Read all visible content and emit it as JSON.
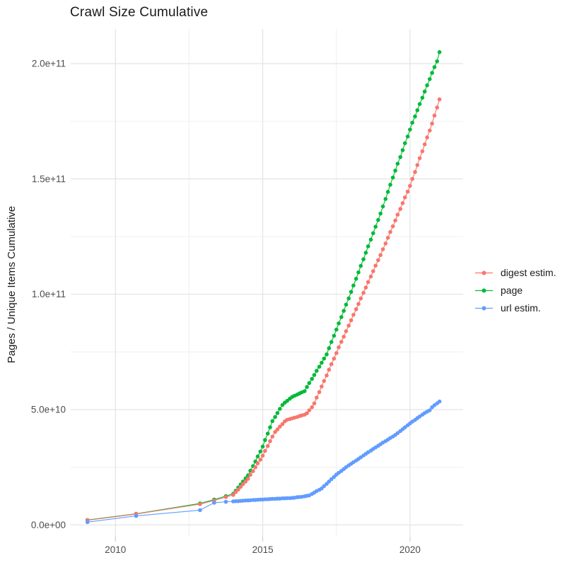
{
  "chart_data": {
    "type": "line",
    "title": "Crawl Size Cumulative",
    "xlabel": "",
    "ylabel": "Pages / Unique Items Cumulative",
    "value_unit": "1e9 pages",
    "legend_position": "right",
    "grid": true,
    "style": {
      "grid_major_color": "#E3E3E3",
      "grid_minor_color": "#EFEFEF",
      "tick_color": "#CFCFCF",
      "tick_label_color": "#4D4D4D",
      "text_color": "#1A1A1A",
      "background": "#FFFFFF"
    },
    "x_axis": {
      "range": [
        2008.45,
        2021.75
      ],
      "ticks": [
        2010,
        2015,
        2020
      ],
      "tick_labels": [
        "2010",
        "2015",
        "2020"
      ],
      "minor_ticks": [
        2012.5,
        2017.5
      ]
    },
    "y_axis": {
      "range": [
        -5,
        215
      ],
      "ticks": [
        0,
        50,
        100,
        150,
        200
      ],
      "tick_labels": [
        "0.0e+00",
        "5.0e+10",
        "1.0e+11",
        "1.5e+11",
        "2.0e+11"
      ],
      "minor_ticks": [
        25,
        75,
        125,
        175
      ]
    },
    "draw_order": [
      1,
      0,
      2
    ],
    "series": [
      {
        "name": "digest estim.",
        "color": "#F8766D",
        "points": [
          [
            2009.05,
            2.0
          ],
          [
            2010.7,
            4.7
          ],
          [
            2012.87,
            9.0
          ],
          [
            2013.35,
            10.6
          ],
          [
            2013.75,
            12.1
          ],
          [
            2014.0,
            13.0
          ],
          [
            2014.08,
            14.2
          ],
          [
            2014.17,
            15.3
          ],
          [
            2014.25,
            16.5
          ],
          [
            2014.33,
            17.7
          ],
          [
            2014.42,
            18.8
          ],
          [
            2014.5,
            20.0
          ],
          [
            2014.58,
            21.7
          ],
          [
            2014.67,
            23.3
          ],
          [
            2014.75,
            25.0
          ],
          [
            2014.83,
            26.7
          ],
          [
            2014.92,
            28.3
          ],
          [
            2015.0,
            30.0
          ],
          [
            2015.08,
            32.1
          ],
          [
            2015.17,
            34.2
          ],
          [
            2015.25,
            36.3
          ],
          [
            2015.33,
            38.3
          ],
          [
            2015.42,
            40.3
          ],
          [
            2015.5,
            41.4
          ],
          [
            2015.58,
            42.6
          ],
          [
            2015.67,
            43.7
          ],
          [
            2015.75,
            44.9
          ],
          [
            2015.83,
            45.6
          ],
          [
            2015.92,
            45.9
          ],
          [
            2016.0,
            46.2
          ],
          [
            2016.08,
            46.5
          ],
          [
            2016.17,
            46.8
          ],
          [
            2016.25,
            47.2
          ],
          [
            2016.33,
            47.5
          ],
          [
            2016.42,
            47.8
          ],
          [
            2016.5,
            48.4
          ],
          [
            2016.58,
            49.7
          ],
          [
            2016.67,
            51.0
          ],
          [
            2016.75,
            52.7
          ],
          [
            2016.83,
            55.2
          ],
          [
            2016.92,
            57.6
          ],
          [
            2017.0,
            60.0
          ],
          [
            2017.08,
            62.4
          ],
          [
            2017.17,
            64.8
          ],
          [
            2017.25,
            67.3
          ],
          [
            2017.33,
            69.7
          ],
          [
            2017.42,
            72.1
          ],
          [
            2017.5,
            74.5
          ],
          [
            2017.58,
            77.0
          ],
          [
            2017.67,
            79.4
          ],
          [
            2017.75,
            81.6
          ],
          [
            2017.83,
            84.0
          ],
          [
            2017.92,
            86.4
          ],
          [
            2018.0,
            88.7
          ],
          [
            2018.08,
            91.1
          ],
          [
            2018.17,
            93.5
          ],
          [
            2018.25,
            95.8
          ],
          [
            2018.33,
            98.2
          ],
          [
            2018.42,
            100.6
          ],
          [
            2018.5,
            102.9
          ],
          [
            2018.58,
            105.3
          ],
          [
            2018.67,
            107.7
          ],
          [
            2018.75,
            110.0
          ],
          [
            2018.83,
            112.4
          ],
          [
            2018.92,
            114.8
          ],
          [
            2019.0,
            117.0
          ],
          [
            2019.08,
            119.5
          ],
          [
            2019.17,
            122.0
          ],
          [
            2019.25,
            124.5
          ],
          [
            2019.33,
            127.0
          ],
          [
            2019.42,
            129.5
          ],
          [
            2019.5,
            132.0
          ],
          [
            2019.58,
            134.5
          ],
          [
            2019.67,
            137.0
          ],
          [
            2019.75,
            139.5
          ],
          [
            2019.83,
            142.0
          ],
          [
            2019.92,
            144.5
          ],
          [
            2020.0,
            147.0
          ],
          [
            2020.08,
            150.0
          ],
          [
            2020.17,
            153.0
          ],
          [
            2020.25,
            156.0
          ],
          [
            2020.33,
            159.0
          ],
          [
            2020.42,
            162.0
          ],
          [
            2020.5,
            165.0
          ],
          [
            2020.58,
            168.0
          ],
          [
            2020.67,
            171.0
          ],
          [
            2020.75,
            174.0
          ],
          [
            2020.83,
            177.5
          ],
          [
            2020.92,
            181.0
          ],
          [
            2021.0,
            184.5
          ]
        ]
      },
      {
        "name": "page",
        "color": "#00BA38",
        "points": [
          [
            2009.05,
            2.1
          ],
          [
            2010.7,
            4.8
          ],
          [
            2012.87,
            9.3
          ],
          [
            2013.35,
            11.0
          ],
          [
            2013.75,
            12.5
          ],
          [
            2014.0,
            13.5
          ],
          [
            2014.08,
            14.8
          ],
          [
            2014.17,
            16.2
          ],
          [
            2014.25,
            17.5
          ],
          [
            2014.33,
            18.8
          ],
          [
            2014.42,
            20.2
          ],
          [
            2014.5,
            21.5
          ],
          [
            2014.58,
            23.5
          ],
          [
            2014.67,
            25.5
          ],
          [
            2014.75,
            27.5
          ],
          [
            2014.83,
            29.7
          ],
          [
            2014.92,
            31.8
          ],
          [
            2015.0,
            34.0
          ],
          [
            2015.08,
            36.8
          ],
          [
            2015.17,
            39.6
          ],
          [
            2015.25,
            42.3
          ],
          [
            2015.33,
            45.0
          ],
          [
            2015.42,
            46.8
          ],
          [
            2015.5,
            48.5
          ],
          [
            2015.58,
            50.3
          ],
          [
            2015.67,
            52.0
          ],
          [
            2015.75,
            53.0
          ],
          [
            2015.83,
            53.8
          ],
          [
            2015.92,
            54.7
          ],
          [
            2016.0,
            55.5
          ],
          [
            2016.08,
            56.0
          ],
          [
            2016.17,
            56.5
          ],
          [
            2016.25,
            57.0
          ],
          [
            2016.33,
            57.5
          ],
          [
            2016.42,
            58.0
          ],
          [
            2016.5,
            59.8
          ],
          [
            2016.58,
            61.5
          ],
          [
            2016.67,
            63.3
          ],
          [
            2016.75,
            65.0
          ],
          [
            2016.83,
            66.8
          ],
          [
            2016.92,
            68.6
          ],
          [
            2017.0,
            70.3
          ],
          [
            2017.08,
            72.1
          ],
          [
            2017.17,
            73.9
          ],
          [
            2017.25,
            76.6
          ],
          [
            2017.33,
            79.3
          ],
          [
            2017.42,
            82.0
          ],
          [
            2017.5,
            84.7
          ],
          [
            2017.58,
            87.4
          ],
          [
            2017.67,
            90.1
          ],
          [
            2017.75,
            92.8
          ],
          [
            2017.83,
            95.5
          ],
          [
            2017.92,
            98.2
          ],
          [
            2018.0,
            101.0
          ],
          [
            2018.08,
            103.8
          ],
          [
            2018.17,
            106.7
          ],
          [
            2018.25,
            109.5
          ],
          [
            2018.33,
            112.3
          ],
          [
            2018.42,
            115.2
          ],
          [
            2018.5,
            118.0
          ],
          [
            2018.58,
            120.8
          ],
          [
            2018.67,
            123.7
          ],
          [
            2018.75,
            126.5
          ],
          [
            2018.83,
            129.3
          ],
          [
            2018.92,
            132.2
          ],
          [
            2019.0,
            135.0
          ],
          [
            2019.08,
            138.1
          ],
          [
            2019.17,
            141.3
          ],
          [
            2019.25,
            144.4
          ],
          [
            2019.33,
            147.5
          ],
          [
            2019.42,
            150.6
          ],
          [
            2019.5,
            153.6
          ],
          [
            2019.58,
            156.6
          ],
          [
            2019.67,
            159.5
          ],
          [
            2019.75,
            162.5
          ],
          [
            2019.83,
            165.5
          ],
          [
            2019.92,
            168.4
          ],
          [
            2020.0,
            171.4
          ],
          [
            2020.08,
            174.4
          ],
          [
            2020.17,
            177.1
          ],
          [
            2020.25,
            179.8
          ],
          [
            2020.33,
            182.5
          ],
          [
            2020.42,
            185.2
          ],
          [
            2020.5,
            187.9
          ],
          [
            2020.58,
            190.6
          ],
          [
            2020.67,
            193.3
          ],
          [
            2020.75,
            196.0
          ],
          [
            2020.83,
            198.5
          ],
          [
            2020.92,
            201.0
          ],
          [
            2021.0,
            205.0
          ]
        ]
      },
      {
        "name": "url estim.",
        "color": "#619CFF",
        "points": [
          [
            2009.05,
            1.2
          ],
          [
            2010.7,
            3.9
          ],
          [
            2012.87,
            6.4
          ],
          [
            2013.35,
            9.6
          ],
          [
            2013.75,
            10.0
          ],
          [
            2014.0,
            10.2
          ],
          [
            2014.08,
            10.3
          ],
          [
            2014.17,
            10.3
          ],
          [
            2014.25,
            10.4
          ],
          [
            2014.33,
            10.5
          ],
          [
            2014.42,
            10.6
          ],
          [
            2014.5,
            10.6
          ],
          [
            2014.58,
            10.7
          ],
          [
            2014.67,
            10.8
          ],
          [
            2014.75,
            10.8
          ],
          [
            2014.83,
            10.9
          ],
          [
            2014.92,
            11.0
          ],
          [
            2015.0,
            11.0
          ],
          [
            2015.08,
            11.1
          ],
          [
            2015.17,
            11.1
          ],
          [
            2015.25,
            11.2
          ],
          [
            2015.33,
            11.3
          ],
          [
            2015.42,
            11.3
          ],
          [
            2015.5,
            11.4
          ],
          [
            2015.58,
            11.4
          ],
          [
            2015.67,
            11.5
          ],
          [
            2015.75,
            11.5
          ],
          [
            2015.83,
            11.6
          ],
          [
            2015.92,
            11.6
          ],
          [
            2016.0,
            11.7
          ],
          [
            2016.08,
            11.8
          ],
          [
            2016.17,
            12.0
          ],
          [
            2016.25,
            12.1
          ],
          [
            2016.33,
            12.2
          ],
          [
            2016.42,
            12.4
          ],
          [
            2016.5,
            12.6
          ],
          [
            2016.58,
            12.8
          ],
          [
            2016.67,
            13.4
          ],
          [
            2016.75,
            14.0
          ],
          [
            2016.83,
            14.7
          ],
          [
            2016.92,
            15.2
          ],
          [
            2017.0,
            15.8
          ],
          [
            2017.08,
            16.8
          ],
          [
            2017.17,
            17.8
          ],
          [
            2017.25,
            18.8
          ],
          [
            2017.33,
            19.8
          ],
          [
            2017.42,
            20.8
          ],
          [
            2017.5,
            21.8
          ],
          [
            2017.58,
            22.6
          ],
          [
            2017.67,
            23.4
          ],
          [
            2017.75,
            24.2
          ],
          [
            2017.83,
            25.0
          ],
          [
            2017.92,
            25.8
          ],
          [
            2018.0,
            26.5
          ],
          [
            2018.08,
            27.2
          ],
          [
            2018.17,
            27.9
          ],
          [
            2018.25,
            28.6
          ],
          [
            2018.33,
            29.3
          ],
          [
            2018.42,
            30.1
          ],
          [
            2018.5,
            30.8
          ],
          [
            2018.58,
            31.5
          ],
          [
            2018.67,
            32.2
          ],
          [
            2018.75,
            32.9
          ],
          [
            2018.83,
            33.6
          ],
          [
            2018.92,
            34.3
          ],
          [
            2019.0,
            35.0
          ],
          [
            2019.08,
            35.7
          ],
          [
            2019.17,
            36.3
          ],
          [
            2019.25,
            37.0
          ],
          [
            2019.33,
            37.7
          ],
          [
            2019.42,
            38.3
          ],
          [
            2019.5,
            39.0
          ],
          [
            2019.58,
            39.8
          ],
          [
            2019.67,
            40.7
          ],
          [
            2019.75,
            41.5
          ],
          [
            2019.83,
            42.3
          ],
          [
            2019.92,
            43.2
          ],
          [
            2020.0,
            44.0
          ],
          [
            2020.08,
            44.8
          ],
          [
            2020.17,
            45.5
          ],
          [
            2020.25,
            46.3
          ],
          [
            2020.33,
            47.0
          ],
          [
            2020.42,
            47.8
          ],
          [
            2020.5,
            48.5
          ],
          [
            2020.58,
            49.1
          ],
          [
            2020.67,
            49.7
          ],
          [
            2020.75,
            51.0
          ],
          [
            2020.83,
            51.9
          ],
          [
            2020.92,
            52.7
          ],
          [
            2021.0,
            53.5
          ]
        ]
      }
    ]
  }
}
